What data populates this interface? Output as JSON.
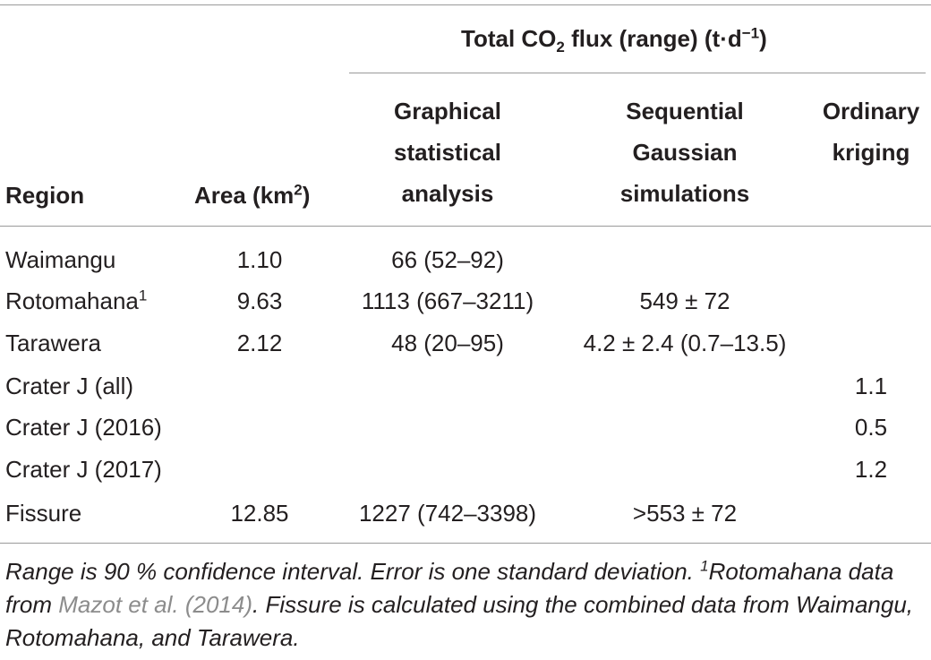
{
  "header": {
    "group_title_prefix": "Total CO",
    "group_title_sub": "2",
    "group_title_mid": " flux (range) (t·d",
    "group_title_sup": "−1",
    "group_title_suffix": ")",
    "region": "Region",
    "area_prefix": "Area (km",
    "area_sup": "2",
    "area_suffix": ")",
    "graphical": [
      "Graphical",
      "statistical",
      "analysis"
    ],
    "sequential": [
      "Sequential",
      "Gaussian",
      "simulations"
    ],
    "kriging": [
      "Ordinary",
      "kriging"
    ]
  },
  "rows": [
    {
      "region": "Waimangu",
      "region_sup": "",
      "area": "1.10",
      "graphical": "66 (52–92)",
      "sequential": "",
      "kriging": ""
    },
    {
      "region": "Rotomahana",
      "region_sup": "1",
      "area": "9.63",
      "graphical": "1113 (667–3211)",
      "sequential": "549 ± 72",
      "kriging": ""
    },
    {
      "region": "Tarawera",
      "region_sup": "",
      "area": "2.12",
      "graphical": "48 (20–95)",
      "sequential": "4.2 ± 2.4 (0.7–13.5)",
      "kriging": ""
    },
    {
      "region": "Crater J (all)",
      "region_sup": "",
      "area": "",
      "graphical": "",
      "sequential": "",
      "kriging": "1.1"
    },
    {
      "region": "Crater J (2016)",
      "region_sup": "",
      "area": "",
      "graphical": "",
      "sequential": "",
      "kriging": "0.5"
    },
    {
      "region": "Crater J (2017)",
      "region_sup": "",
      "area": "",
      "graphical": "",
      "sequential": "",
      "kriging": "1.2"
    },
    {
      "region": "Fissure",
      "region_sup": "",
      "area": "12.85",
      "graphical": "1227 (742–3398)",
      "sequential": ">553 ± 72",
      "kriging": ""
    }
  ],
  "footnote": {
    "part1": "Range is 90 % confidence interval. Error is one standard deviation. ",
    "sup": "1",
    "part2": "Rotomahana data from ",
    "link": "Mazot et al. (2014)",
    "part3": ". Fissure is calculated using the combined data from Waimangu, Rotomahana, and Tarawera."
  }
}
